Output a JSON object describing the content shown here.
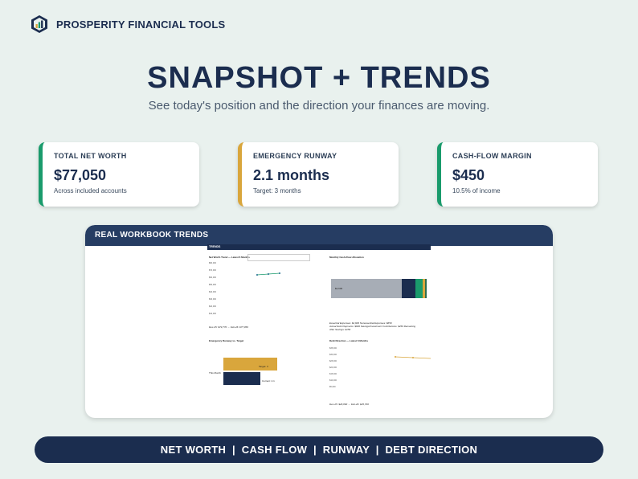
{
  "brand": {
    "name": "PROSPERITY FINANCIAL TOOLS",
    "logo_icon": "hexagon-bar-chart-icon"
  },
  "hero": {
    "title": "SNAPSHOT + TRENDS",
    "subtitle": "See today's position and the direction your finances are moving."
  },
  "cards": [
    {
      "label": "TOTAL NET WORTH",
      "value": "$77,050",
      "note": "Across included accounts",
      "accent": "#1a9b6c"
    },
    {
      "label": "EMERGENCY RUNWAY",
      "value": "2.1 months",
      "note": "Target: 3 months",
      "accent": "#d9a63c"
    },
    {
      "label": "CASH-FLOW MARGIN",
      "value": "$450",
      "note": "10.5% of income",
      "accent": "#1a9b6c"
    }
  ],
  "workbook": {
    "header": "REAL WORKBOOK TRENDS",
    "sheet_tab": "TRENDS",
    "charts": {
      "net_worth": {
        "title": "Net Worth Trend — Latest 6 Months",
        "footnote": "Dec-25: $73,770 → Feb-26: $77,050"
      },
      "cashflow": {
        "title": "Monthly Cash-Flow Allocation",
        "segment_label": "$2,600",
        "footnote_1": "Essential Expenses: $2,600   Nonessential Expenses: $650",
        "footnote_2": "Actual Debt Payments: $600   Savings/Investment Contributions: $250   Remaining",
        "footnote_3": "After Savings: $150"
      },
      "runway": {
        "title": "Emergency Runway vs. Target",
        "row_1": "Target: 3",
        "row_2": "This Month",
        "row_3": "Current: 2.1"
      },
      "debt": {
        "title": "Debt Direction — Latest 6 Months",
        "footnote": "Dec-25: $26,800 → Feb-26: $25,700"
      }
    }
  },
  "footer": {
    "text": "NET WORTH  |  CASH FLOW  |  RUNWAY  |  DEBT DIRECTION"
  },
  "colors": {
    "navy": "#1b2d4f",
    "green": "#1a9b6c",
    "gold": "#d9a63c",
    "gray": "#a7adb6"
  }
}
